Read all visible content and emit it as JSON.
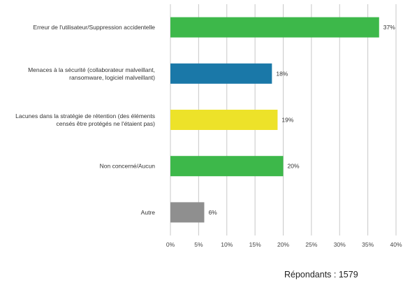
{
  "chart_data": {
    "type": "bar",
    "orientation": "horizontal",
    "categories": [
      [
        "Erreur de l'utilisateur/Suppression accidentelle"
      ],
      [
        "Menaces à la sécurité (collaborateur malveillant,",
        "ransomware, logiciel malveillant)"
      ],
      [
        "Lacunes dans la stratégie de rétention (des éléments",
        "censés être protégés ne l'étaient pas)"
      ],
      [
        "Non concerné/Aucun"
      ],
      [
        "Autre"
      ]
    ],
    "values": [
      37,
      18,
      19,
      20,
      6
    ],
    "value_labels": [
      "37%",
      "18%",
      "19%",
      "20%",
      "6%"
    ],
    "colors": [
      "#3db84a",
      "#1a78a8",
      "#ede229",
      "#3db84a",
      "#8f8f8f"
    ],
    "xlim": [
      0,
      40
    ],
    "xticks": [
      0,
      5,
      10,
      15,
      20,
      25,
      30,
      35,
      40
    ],
    "xtick_labels": [
      "0%",
      "5%",
      "10%",
      "15%",
      "20%",
      "25%",
      "30%",
      "35%",
      "40%"
    ],
    "grid": "vertical",
    "grid_color": "#c8c8c8"
  },
  "footnote": "Répondants : 1579"
}
